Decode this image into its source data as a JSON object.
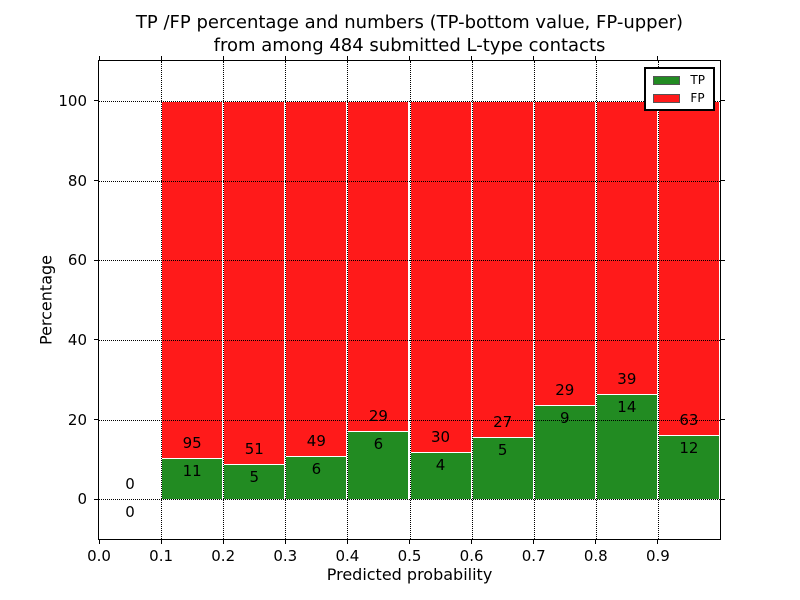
{
  "title": {
    "line1": "TP /FP percentage and numbers (TP-bottom value, FP-upper)",
    "line2": "from among 484 submitted L-type contacts"
  },
  "chart_data": {
    "type": "bar",
    "subtype": "stacked-percentage-histogram",
    "title": "TP /FP percentage and numbers (TP-bottom value, FP-upper)\nfrom among 484 submitted L-type contacts",
    "xlabel": "Predicted probability",
    "ylabel": "Percentage",
    "xlim": [
      0.0,
      1.0
    ],
    "ylim": [
      -10,
      110
    ],
    "x_tick_labels": [
      "0.0",
      "0.1",
      "0.2",
      "0.3",
      "0.4",
      "0.5",
      "0.6",
      "0.7",
      "0.8",
      "0.9"
    ],
    "y_tick_values": [
      0,
      20,
      40,
      60,
      80,
      100
    ],
    "grid": "dotted black, drawn above bars",
    "total_contacts": 484,
    "legend": {
      "position": "upper right",
      "items": [
        {
          "label": "TP",
          "color": "#228b22"
        },
        {
          "label": "FP",
          "color": "#ff1a1a"
        }
      ]
    },
    "colors": {
      "tp": "#228b22",
      "fp": "#ff1a1a",
      "bar_edge": "#ffffff"
    },
    "bins": [
      {
        "x_range": [
          0.0,
          0.1
        ],
        "tp_count": 0,
        "fp_count": 0
      },
      {
        "x_range": [
          0.1,
          0.2
        ],
        "tp_count": 11,
        "fp_count": 95
      },
      {
        "x_range": [
          0.2,
          0.3
        ],
        "tp_count": 5,
        "fp_count": 51
      },
      {
        "x_range": [
          0.3,
          0.4
        ],
        "tp_count": 6,
        "fp_count": 49
      },
      {
        "x_range": [
          0.4,
          0.5
        ],
        "tp_count": 6,
        "fp_count": 29
      },
      {
        "x_range": [
          0.5,
          0.6
        ],
        "tp_count": 4,
        "fp_count": 30
      },
      {
        "x_range": [
          0.6,
          0.7
        ],
        "tp_count": 5,
        "fp_count": 27
      },
      {
        "x_range": [
          0.7,
          0.8
        ],
        "tp_count": 9,
        "fp_count": 29
      },
      {
        "x_range": [
          0.8,
          0.9
        ],
        "tp_count": 14,
        "fp_count": 39
      },
      {
        "x_range": [
          0.9,
          1.0
        ],
        "tp_count": 12,
        "fp_count": 63
      }
    ]
  }
}
